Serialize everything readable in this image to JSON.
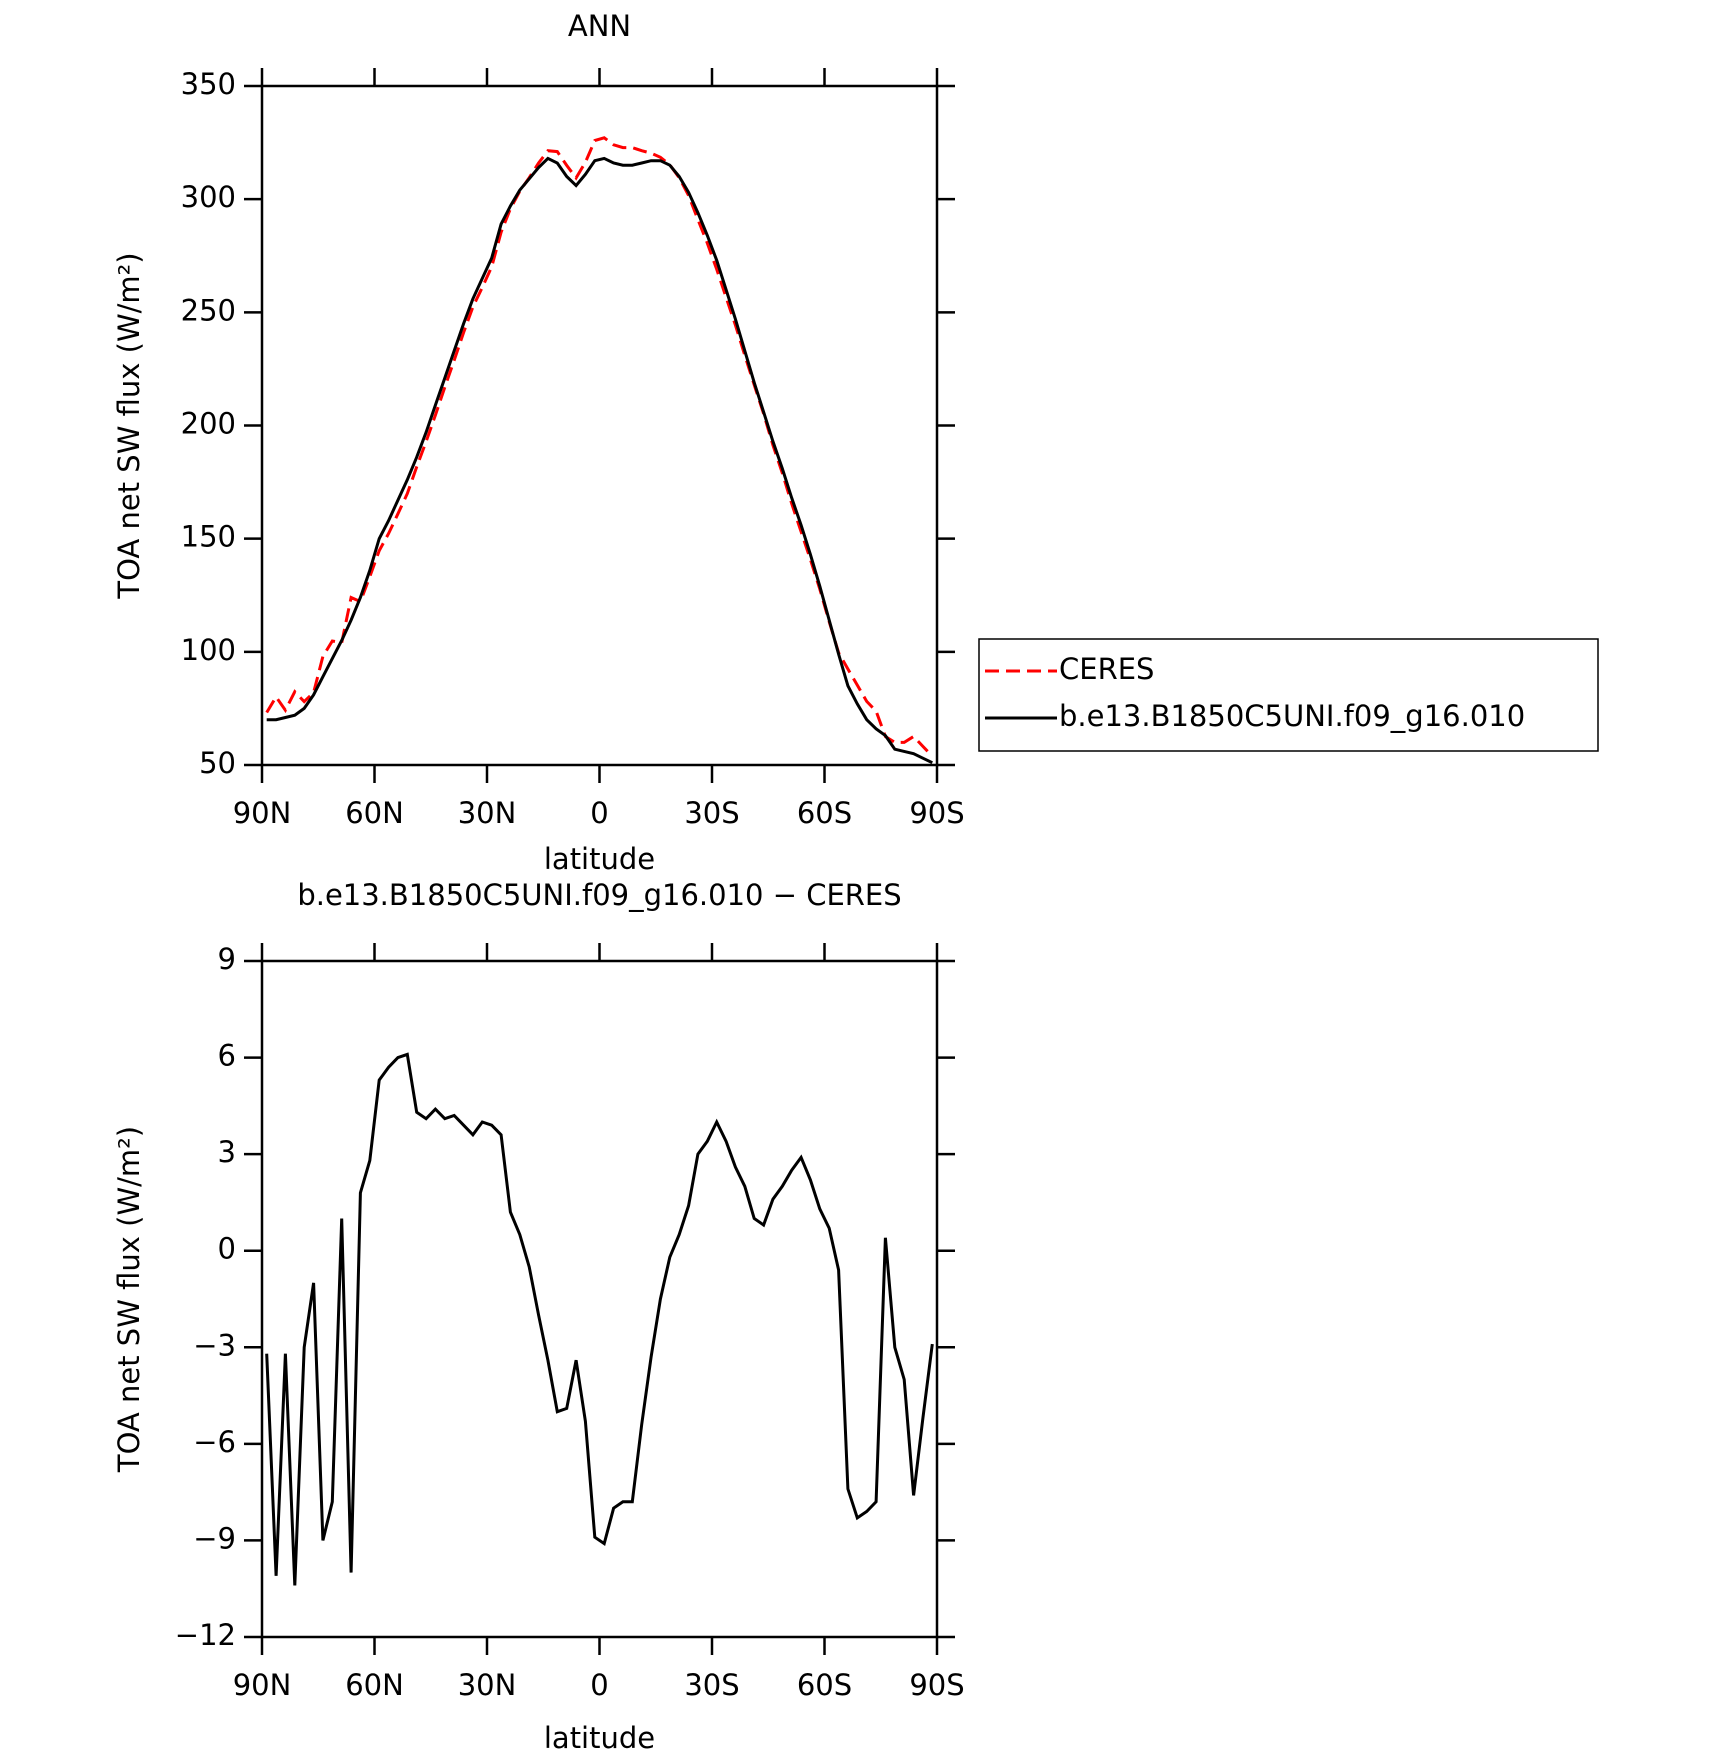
{
  "chart_data": [
    {
      "type": "line",
      "title": "ANN",
      "xlabel": "latitude",
      "ylabel": "TOA net SW flux (W/m²)",
      "x": [
        88.75,
        86.25,
        83.75,
        81.25,
        78.75,
        76.25,
        73.75,
        71.25,
        68.75,
        66.25,
        63.75,
        61.25,
        58.75,
        56.25,
        53.75,
        51.25,
        48.75,
        46.25,
        43.75,
        41.25,
        38.75,
        36.25,
        33.75,
        31.25,
        28.75,
        26.25,
        23.75,
        21.25,
        18.75,
        16.25,
        13.75,
        11.25,
        8.75,
        6.25,
        3.75,
        1.25,
        -1.25,
        -3.75,
        -6.25,
        -8.75,
        -11.25,
        -13.75,
        -16.25,
        -18.75,
        -21.25,
        -23.75,
        -26.25,
        -28.75,
        -31.25,
        -33.75,
        -36.25,
        -38.75,
        -41.25,
        -43.75,
        -46.25,
        -48.75,
        -51.25,
        -53.75,
        -56.25,
        -58.75,
        -61.25,
        -63.75,
        -66.25,
        -68.75,
        -71.25,
        -73.75,
        -76.25,
        -78.75,
        -81.25,
        -83.75,
        -86.25,
        -88.75
      ],
      "xlim": [
        90,
        -90
      ],
      "xticks": [
        {
          "value": 90,
          "label": "90N"
        },
        {
          "value": 60,
          "label": "60N"
        },
        {
          "value": 30,
          "label": "30N"
        },
        0,
        {
          "value": -30,
          "label": "30S"
        },
        {
          "value": -60,
          "label": "60S"
        },
        {
          "value": -90,
          "label": "90S"
        }
      ],
      "ylim": [
        50,
        350
      ],
      "yticks": [
        50,
        100,
        150,
        200,
        250,
        300,
        350
      ],
      "legend": "outside-right",
      "series": [
        {
          "name": "CERES",
          "color": "#ff0000",
          "dash": "dashed",
          "values": [
            73.2,
            80.1,
            74.2,
            82.4,
            78.0,
            82.0,
            98.0,
            104.8,
            104.0,
            124.0,
            122.2,
            133.2,
            144.7,
            152.3,
            161.0,
            169.9,
            181.7,
            192.9,
            204.6,
            216.9,
            228.8,
            241.1,
            252.4,
            261.0,
            270.1,
            285.4,
            295.8,
            303.5,
            309.5,
            316.0,
            321.4,
            321.0,
            314.9,
            309.4,
            316.3,
            325.9,
            327.1,
            324.0,
            322.8,
            322.8,
            321.4,
            320.3,
            318.5,
            315.2,
            309.5,
            301.6,
            291.0,
            280.6,
            269.0,
            256.6,
            244.4,
            231.0,
            218.0,
            205.2,
            191.4,
            179.0,
            165.5,
            153.1,
            140.8,
            127.7,
            113.3,
            99.6,
            92.4,
            85.3,
            78.1,
            73.8,
            62.6,
            60.0,
            60.0,
            62.6,
            58.2,
            53.9
          ]
        },
        {
          "name": "b.e13.B1850C5UNI.f09_g16.010",
          "color": "#000000",
          "dash": "solid",
          "values": [
            70,
            70,
            71,
            72,
            75,
            81,
            89,
            97,
            105,
            114,
            124,
            136,
            150,
            158,
            167,
            176,
            186,
            197,
            209,
            221,
            233,
            245,
            256,
            265,
            274,
            289,
            297,
            304,
            309,
            314,
            318,
            316,
            310,
            306,
            311,
            317,
            318,
            316,
            315,
            315,
            316,
            317,
            317,
            315,
            310,
            303,
            294,
            284,
            273,
            260,
            247,
            233,
            219,
            206,
            193,
            181,
            168,
            156,
            143,
            129,
            114,
            99,
            85,
            77,
            70,
            66,
            63,
            57,
            56,
            55,
            53,
            51
          ]
        }
      ]
    },
    {
      "type": "line",
      "title": "b.e13.B1850C5UNI.f09_g16.010 − CERES",
      "xlabel": "latitude",
      "ylabel": "TOA net SW flux (W/m²)",
      "x": [
        88.75,
        86.25,
        83.75,
        81.25,
        78.75,
        76.25,
        73.75,
        71.25,
        68.75,
        66.25,
        63.75,
        61.25,
        58.75,
        56.25,
        53.75,
        51.25,
        48.75,
        46.25,
        43.75,
        41.25,
        38.75,
        36.25,
        33.75,
        31.25,
        28.75,
        26.25,
        23.75,
        21.25,
        18.75,
        16.25,
        13.75,
        11.25,
        8.75,
        6.25,
        3.75,
        1.25,
        -1.25,
        -3.75,
        -6.25,
        -8.75,
        -11.25,
        -13.75,
        -16.25,
        -18.75,
        -21.25,
        -23.75,
        -26.25,
        -28.75,
        -31.25,
        -33.75,
        -36.25,
        -38.75,
        -41.25,
        -43.75,
        -46.25,
        -48.75,
        -51.25,
        -53.75,
        -56.25,
        -58.75,
        -61.25,
        -63.75,
        -66.25,
        -68.75,
        -71.25,
        -73.75,
        -76.25,
        -78.75,
        -81.25,
        -83.75,
        -86.25,
        -88.75
      ],
      "xlim": [
        90,
        -90
      ],
      "xticks": [
        {
          "value": 90,
          "label": "90N"
        },
        {
          "value": 60,
          "label": "60N"
        },
        {
          "value": 30,
          "label": "30N"
        },
        0,
        {
          "value": -30,
          "label": "30S"
        },
        {
          "value": -60,
          "label": "60S"
        },
        {
          "value": -90,
          "label": "90S"
        }
      ],
      "ylim": [
        -12,
        9
      ],
      "yticks": [
        {
          "value": -12,
          "label": "−12"
        },
        {
          "value": -9,
          "label": "−9"
        },
        {
          "value": -6,
          "label": "−6"
        },
        {
          "value": -3,
          "label": "−3"
        },
        0,
        3,
        6,
        9
      ],
      "series": [
        {
          "color": "#000000",
          "dash": "solid",
          "values": [
            -3.2,
            -10.1,
            -3.2,
            -10.4,
            -3.0,
            -1.0,
            -9.0,
            -7.8,
            1.0,
            -10.0,
            1.8,
            2.8,
            5.3,
            5.7,
            6.0,
            6.1,
            4.3,
            4.1,
            4.4,
            4.1,
            4.2,
            3.9,
            3.6,
            4.0,
            3.9,
            3.6,
            1.2,
            0.5,
            -0.5,
            -2.0,
            -3.4,
            -5.0,
            -4.9,
            -3.4,
            -5.3,
            -8.9,
            -9.1,
            -8.0,
            -7.8,
            -7.8,
            -5.4,
            -3.3,
            -1.5,
            -0.2,
            0.5,
            1.4,
            3.0,
            3.4,
            4.0,
            3.4,
            2.6,
            2.0,
            1.0,
            0.8,
            1.6,
            2.0,
            2.5,
            2.9,
            2.2,
            1.3,
            0.7,
            -0.6,
            -7.4,
            -8.3,
            -8.1,
            -7.8,
            0.4,
            -3.0,
            -4.0,
            -7.6,
            -5.2,
            -2.9
          ]
        }
      ]
    }
  ]
}
